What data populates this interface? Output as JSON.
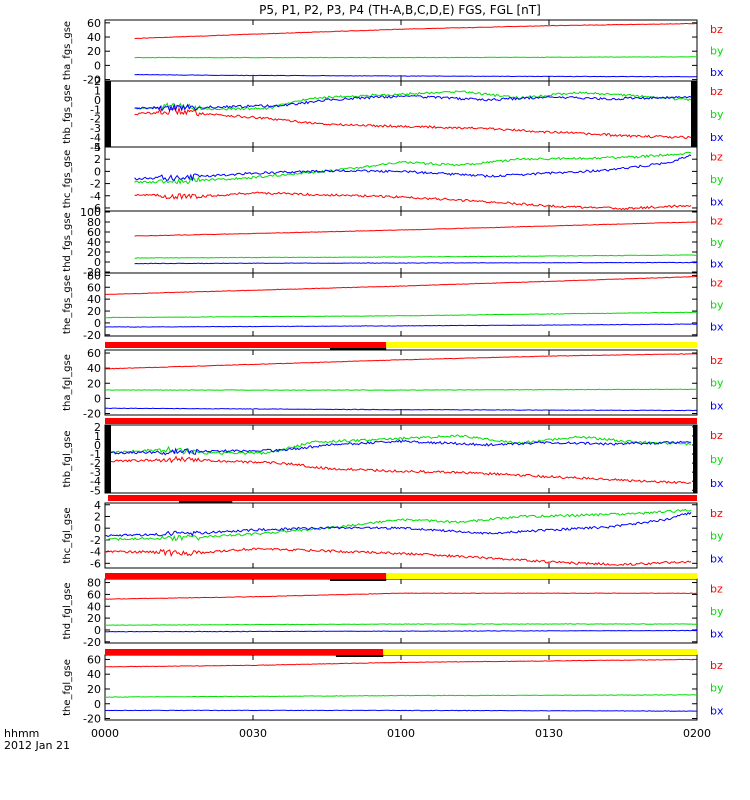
{
  "title": "P5, P1, P2, P3, P4 (TH-A,B,C,D,E) FGS, FGL [nT]",
  "footer": {
    "label_line1": "hhmm",
    "label_line2": "2012 Jan 21",
    "ticks": [
      "0000",
      "0030",
      "0100",
      "0130",
      "0200"
    ]
  },
  "colors": {
    "bx": "#0000ff",
    "by": "#00dd00",
    "bz": "#ff0000",
    "mode_slow": "#ff0000",
    "mode_fast": "#ffff00",
    "ticks": "#000000"
  },
  "chart_data": [
    {
      "type": "line",
      "ylabel": "tha_fgs_gse",
      "yticks": [
        "60",
        "40",
        "20",
        "0",
        "-20"
      ],
      "ylim": [
        -22,
        64
      ],
      "legend": [
        "bz",
        "by",
        "bx"
      ],
      "series": [
        {
          "name": "bz",
          "points": [
            [
              0.1,
              38
            ],
            [
              0.5,
              44
            ],
            [
              1.0,
              51
            ],
            [
              1.5,
              56
            ],
            [
              2.0,
              59
            ]
          ]
        },
        {
          "name": "by",
          "points": [
            [
              0.1,
              11
            ],
            [
              1.0,
              11
            ],
            [
              2.0,
              12
            ]
          ]
        },
        {
          "name": "bx",
          "points": [
            [
              0.1,
              -13
            ],
            [
              0.4,
              -14
            ],
            [
              1.0,
              -15
            ],
            [
              2.0,
              -16
            ]
          ]
        }
      ]
    },
    {
      "type": "line",
      "ylabel": "thb_fgs_gse",
      "yticks": [
        "2",
        "1",
        "0",
        "-1",
        "-2",
        "-3",
        "-4",
        "-5"
      ],
      "ylim": [
        -5,
        2
      ],
      "legend": [
        "bz",
        "by",
        "bx"
      ],
      "series": [
        {
          "name": "bz",
          "points": [
            [
              0.1,
              -1.5
            ],
            [
              0.25,
              -1.2
            ],
            [
              0.35,
              -1.5
            ],
            [
              0.55,
              -2.0
            ],
            [
              0.75,
              -2.6
            ],
            [
              1.0,
              -2.8
            ],
            [
              1.25,
              -3.0
            ],
            [
              1.5,
              -3.4
            ],
            [
              1.75,
              -3.8
            ],
            [
              1.98,
              -4.0
            ]
          ]
        },
        {
          "name": "by",
          "points": [
            [
              0.1,
              -0.9
            ],
            [
              0.25,
              -0.6
            ],
            [
              0.35,
              -1.0
            ],
            [
              0.55,
              -0.9
            ],
            [
              0.7,
              0.2
            ],
            [
              1.0,
              0.6
            ],
            [
              1.2,
              0.9
            ],
            [
              1.4,
              0.2
            ],
            [
              1.6,
              0.8
            ],
            [
              1.8,
              0.4
            ],
            [
              1.98,
              0.0
            ]
          ]
        },
        {
          "name": "bx",
          "points": [
            [
              0.1,
              -0.9
            ],
            [
              0.3,
              -0.8
            ],
            [
              0.6,
              -0.6
            ],
            [
              0.75,
              0.0
            ],
            [
              1.0,
              0.4
            ],
            [
              1.3,
              0.0
            ],
            [
              1.5,
              0.3
            ],
            [
              1.7,
              0.1
            ],
            [
              1.98,
              0.3
            ]
          ]
        }
      ]
    },
    {
      "type": "line",
      "ylabel": "thc_fgs_gse",
      "yticks": [
        "4",
        "2",
        "0",
        "-2",
        "-4",
        "-6"
      ],
      "ylim": [
        -6.5,
        4
      ],
      "legend": [
        "bz",
        "by",
        "bx"
      ],
      "series": [
        {
          "name": "bz",
          "points": [
            [
              0.1,
              -3.8
            ],
            [
              0.3,
              -4.2
            ],
            [
              0.5,
              -3.5
            ],
            [
              0.7,
              -3.8
            ],
            [
              1.0,
              -4.2
            ],
            [
              1.3,
              -5.0
            ],
            [
              1.55,
              -5.8
            ],
            [
              1.75,
              -6.1
            ],
            [
              1.98,
              -5.6
            ]
          ]
        },
        {
          "name": "by",
          "points": [
            [
              0.1,
              -1.8
            ],
            [
              0.3,
              -1.5
            ],
            [
              0.5,
              -1.0
            ],
            [
              0.75,
              0.0
            ],
            [
              1.0,
              1.5
            ],
            [
              1.2,
              1.0
            ],
            [
              1.4,
              2.0
            ],
            [
              1.6,
              2.1
            ],
            [
              1.8,
              2.4
            ],
            [
              1.98,
              3.0
            ]
          ]
        },
        {
          "name": "bx",
          "points": [
            [
              0.1,
              -1.2
            ],
            [
              0.3,
              -0.9
            ],
            [
              0.5,
              -0.3
            ],
            [
              0.75,
              0.1
            ],
            [
              1.0,
              0.0
            ],
            [
              1.3,
              -0.8
            ],
            [
              1.5,
              -0.3
            ],
            [
              1.7,
              0.2
            ],
            [
              1.9,
              1.4
            ],
            [
              1.98,
              2.6
            ]
          ]
        }
      ]
    },
    {
      "type": "line",
      "ylabel": "thd_fgs_gse",
      "yticks": [
        "100",
        "80",
        "60",
        "40",
        "20",
        "0",
        "-20"
      ],
      "ylim": [
        -22,
        102
      ],
      "legend": [
        "bz",
        "by",
        "bx"
      ],
      "series": [
        {
          "name": "bz",
          "points": [
            [
              0.1,
              52
            ],
            [
              0.5,
              57
            ],
            [
              1.0,
              64
            ],
            [
              1.5,
              72
            ],
            [
              2.0,
              80
            ]
          ]
        },
        {
          "name": "by",
          "points": [
            [
              0.1,
              8
            ],
            [
              1.0,
              10
            ],
            [
              2.0,
              14
            ]
          ]
        },
        {
          "name": "bx",
          "points": [
            [
              0.1,
              -3
            ],
            [
              1.0,
              -2
            ],
            [
              2.0,
              -1
            ]
          ]
        }
      ]
    },
    {
      "type": "line",
      "ylabel": "the_fgs_gse",
      "yticks": [
        "80",
        "60",
        "40",
        "20",
        "0",
        "-20"
      ],
      "ylim": [
        -22,
        84
      ],
      "legend": [
        "bz",
        "by",
        "bx"
      ],
      "series": [
        {
          "name": "bz",
          "points": [
            [
              0.0,
              48
            ],
            [
              0.5,
              55
            ],
            [
              1.0,
              62
            ],
            [
              1.5,
              70
            ],
            [
              2.0,
              78
            ]
          ]
        },
        {
          "name": "by",
          "points": [
            [
              0.0,
              9
            ],
            [
              1.0,
              12
            ],
            [
              2.0,
              18
            ]
          ]
        },
        {
          "name": "bx",
          "points": [
            [
              0.0,
              -7
            ],
            [
              1.0,
              -5
            ],
            [
              2.0,
              -2
            ]
          ]
        }
      ]
    },
    {
      "type": "line",
      "ylabel": "tha_fgl_gse",
      "yticks": [
        "60",
        "40",
        "20",
        "0",
        "-20"
      ],
      "ylim": [
        -22,
        64
      ],
      "legend": [
        "bz",
        "by",
        "bx"
      ],
      "series": [
        {
          "name": "bz",
          "points": [
            [
              0.0,
              39
            ],
            [
              0.5,
              45
            ],
            [
              1.0,
              51
            ],
            [
              1.5,
              56
            ],
            [
              2.0,
              59
            ]
          ]
        },
        {
          "name": "by",
          "points": [
            [
              0.0,
              11
            ],
            [
              1.0,
              11
            ],
            [
              2.0,
              12
            ]
          ]
        },
        {
          "name": "bx",
          "points": [
            [
              0.0,
              -13
            ],
            [
              0.5,
              -14
            ],
            [
              1.0,
              -15
            ],
            [
              2.0,
              -16
            ]
          ]
        }
      ]
    },
    {
      "type": "line",
      "ylabel": "thb_fgl_gse",
      "yticks": [
        "2",
        "1",
        "0",
        "-1",
        "-2",
        "-3",
        "-4",
        "-5"
      ],
      "ylim": [
        -5.3,
        2.2
      ],
      "legend": [
        "bz",
        "by",
        "bx"
      ],
      "series": [
        {
          "name": "bz",
          "points": [
            [
              0.02,
              -1.8
            ],
            [
              0.25,
              -1.6
            ],
            [
              0.4,
              -1.8
            ],
            [
              0.6,
              -2.0
            ],
            [
              0.75,
              -2.6
            ],
            [
              1.0,
              -2.9
            ],
            [
              1.25,
              -3.1
            ],
            [
              1.5,
              -3.5
            ],
            [
              1.75,
              -3.9
            ],
            [
              1.98,
              -4.2
            ]
          ]
        },
        {
          "name": "by",
          "points": [
            [
              0.02,
              -0.8
            ],
            [
              0.2,
              -0.5
            ],
            [
              0.35,
              -0.9
            ],
            [
              0.55,
              -0.9
            ],
            [
              0.7,
              0.3
            ],
            [
              1.0,
              0.7
            ],
            [
              1.2,
              1.0
            ],
            [
              1.4,
              0.2
            ],
            [
              1.6,
              0.9
            ],
            [
              1.8,
              0.3
            ],
            [
              1.98,
              0.1
            ]
          ]
        },
        {
          "name": "bx",
          "points": [
            [
              0.02,
              -0.9
            ],
            [
              0.3,
              -0.7
            ],
            [
              0.6,
              -0.6
            ],
            [
              0.75,
              0.0
            ],
            [
              1.0,
              0.4
            ],
            [
              1.3,
              0.0
            ],
            [
              1.5,
              0.3
            ],
            [
              1.7,
              0.1
            ],
            [
              1.98,
              0.3
            ]
          ]
        }
      ]
    },
    {
      "type": "line",
      "ylabel": "thc_fgl_gse",
      "yticks": [
        "4",
        "2",
        "0",
        "-2",
        "-4",
        "-6"
      ],
      "ylim": [
        -6.8,
        4.3
      ],
      "legend": [
        "bz",
        "by",
        "bx"
      ],
      "series": [
        {
          "name": "bz",
          "points": [
            [
              0.0,
              -3.9
            ],
            [
              0.3,
              -4.3
            ],
            [
              0.5,
              -3.5
            ],
            [
              0.7,
              -3.8
            ],
            [
              1.0,
              -4.3
            ],
            [
              1.3,
              -5.1
            ],
            [
              1.55,
              -5.9
            ],
            [
              1.75,
              -6.2
            ],
            [
              1.98,
              -5.7
            ]
          ]
        },
        {
          "name": "by",
          "points": [
            [
              0.0,
              -1.9
            ],
            [
              0.3,
              -1.6
            ],
            [
              0.5,
              -1.0
            ],
            [
              0.75,
              0.0
            ],
            [
              1.0,
              1.5
            ],
            [
              1.2,
              1.0
            ],
            [
              1.4,
              2.0
            ],
            [
              1.6,
              2.2
            ],
            [
              1.8,
              2.5
            ],
            [
              1.98,
              3.1
            ]
          ]
        },
        {
          "name": "bx",
          "points": [
            [
              0.0,
              -1.3
            ],
            [
              0.3,
              -0.9
            ],
            [
              0.5,
              -0.3
            ],
            [
              0.75,
              0.1
            ],
            [
              1.0,
              0.0
            ],
            [
              1.3,
              -0.9
            ],
            [
              1.5,
              -0.3
            ],
            [
              1.7,
              0.2
            ],
            [
              1.9,
              1.5
            ],
            [
              1.98,
              2.7
            ]
          ]
        }
      ]
    },
    {
      "type": "line",
      "ylabel": "thd_fgl_gse",
      "yticks": [
        "80",
        "60",
        "40",
        "20",
        "0",
        "-20"
      ],
      "ylim": [
        -22,
        86
      ],
      "legend": [
        "bz",
        "by",
        "bx"
      ],
      "series": [
        {
          "name": "bz",
          "points": [
            [
              0.0,
              52
            ],
            [
              0.5,
              56
            ],
            [
              1.0,
              62
            ],
            [
              1.5,
              62
            ],
            [
              2.0,
              62
            ]
          ]
        },
        {
          "name": "by",
          "points": [
            [
              0.0,
              8
            ],
            [
              1.0,
              10
            ],
            [
              2.0,
              10
            ]
          ]
        },
        {
          "name": "bx",
          "points": [
            [
              0.0,
              -3
            ],
            [
              1.0,
              -2
            ],
            [
              2.0,
              -1
            ]
          ]
        }
      ]
    },
    {
      "type": "line",
      "ylabel": "the_fgl_gse",
      "yticks": [
        "60",
        "40",
        "20",
        "0",
        "-20"
      ],
      "ylim": [
        -22,
        66
      ],
      "legend": [
        "bz",
        "by",
        "bx"
      ],
      "series": [
        {
          "name": "bz",
          "points": [
            [
              0.0,
              50
            ],
            [
              0.5,
              52
            ],
            [
              1.0,
              56
            ],
            [
              1.5,
              58
            ],
            [
              2.0,
              60
            ]
          ]
        },
        {
          "name": "by",
          "points": [
            [
              0.0,
              9
            ],
            [
              1.0,
              11
            ],
            [
              2.0,
              12
            ]
          ]
        },
        {
          "name": "bx",
          "points": [
            [
              0.0,
              -9
            ],
            [
              1.0,
              -9
            ],
            [
              2.0,
              -10
            ]
          ]
        }
      ]
    }
  ],
  "mode_bars": [
    {
      "after_panel": 4,
      "segments": [
        [
          0.0,
          0.95,
          "mode_slow"
        ],
        [
          0.95,
          2.0,
          "mode_fast"
        ]
      ],
      "ticks": [
        [
          0.76,
          0.95
        ]
      ]
    },
    {
      "after_panel": 5,
      "segments": [
        [
          0.0,
          2.0,
          "mode_slow"
        ]
      ],
      "ticks": []
    },
    {
      "after_panel": 6,
      "segments": [
        [
          0.01,
          2.0,
          "mode_slow"
        ]
      ],
      "ticks": [
        [
          0.25,
          0.43
        ]
      ]
    },
    {
      "after_panel": 7,
      "segments": [
        [
          0.0,
          0.95,
          "mode_slow"
        ],
        [
          0.95,
          2.0,
          "mode_fast"
        ]
      ],
      "ticks": [
        [
          0.76,
          0.95
        ]
      ]
    },
    {
      "after_panel": 8,
      "segments": [
        [
          0.0,
          0.94,
          "mode_slow"
        ],
        [
          0.94,
          2.0,
          "mode_fast"
        ]
      ],
      "ticks": [
        [
          0.78,
          0.94
        ]
      ]
    }
  ]
}
